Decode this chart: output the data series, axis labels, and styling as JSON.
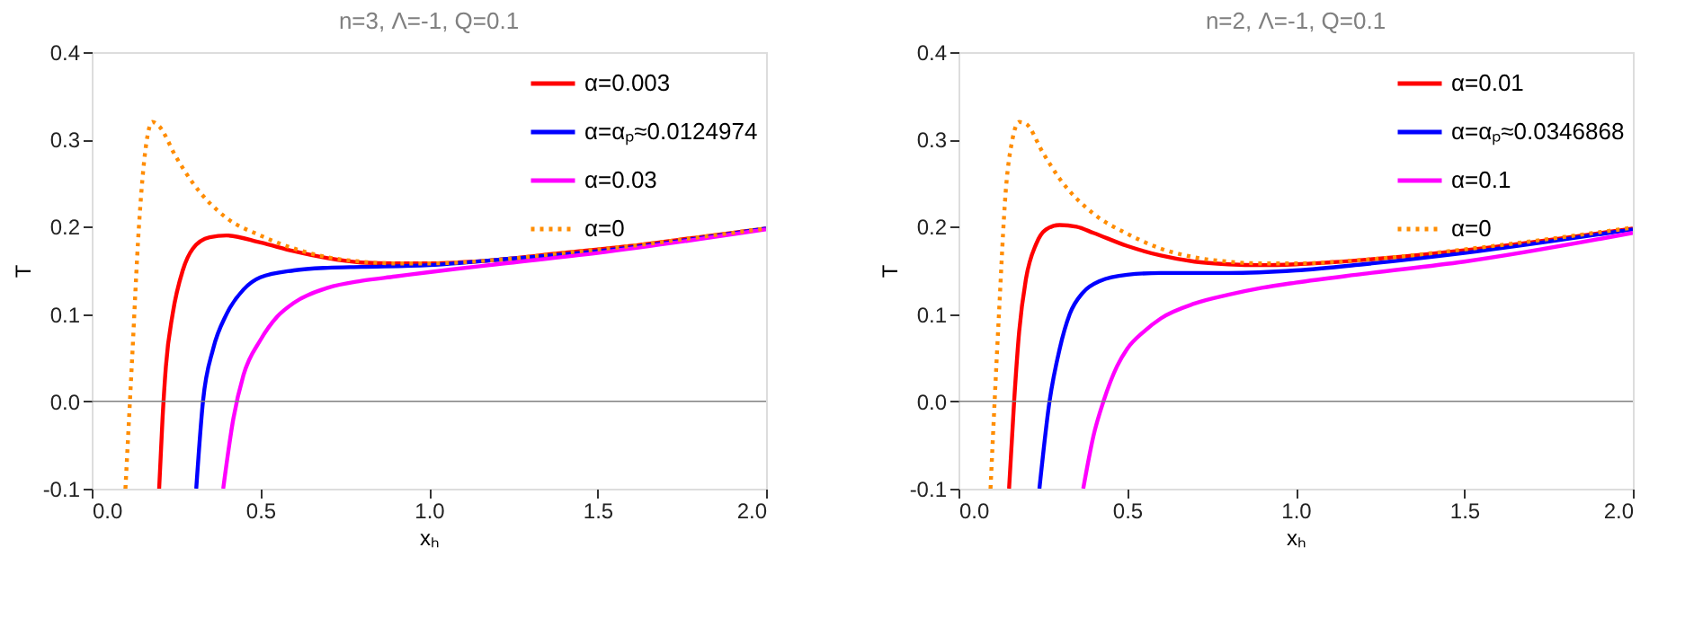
{
  "chart_data": [
    {
      "type": "line",
      "title": "n=3, Λ=-1, Q=0.1",
      "xlabel": "xₕ",
      "ylabel": "T",
      "xlim": [
        0,
        2
      ],
      "ylim": [
        -0.1,
        0.4
      ],
      "xticks": [
        {
          "value": 0,
          "label": "0.0"
        },
        {
          "value": 0.5,
          "label": "0.5"
        },
        {
          "value": 1,
          "label": "1.0"
        },
        {
          "value": 1.5,
          "label": "1.5"
        },
        {
          "value": 2,
          "label": "2.0"
        }
      ],
      "yticks": [
        {
          "value": -0.1,
          "label": "-0.1"
        },
        {
          "value": 0,
          "label": "0.0"
        },
        {
          "value": 0.1,
          "label": "0.1"
        },
        {
          "value": 0.2,
          "label": "0.2"
        },
        {
          "value": 0.3,
          "label": "0.3"
        },
        {
          "value": 0.4,
          "label": "0.4"
        }
      ],
      "grid": false,
      "legend": "top right",
      "ref_lines": [
        {
          "axis": "y",
          "value": 0,
          "color": "#808080"
        }
      ],
      "series": [
        {
          "name": "α=0.003",
          "color": "#ff0000",
          "line_style": "solid",
          "x": [
            0.2,
            0.21,
            0.22,
            0.24,
            0.27,
            0.3,
            0.35,
            0.4,
            0.5,
            0.6,
            0.7,
            0.8,
            0.9,
            1.0,
            1.2,
            1.4,
            1.6,
            1.8,
            2.0
          ],
          "values": [
            -0.1,
            -0.02,
            0.04,
            0.1,
            0.15,
            0.175,
            0.188,
            0.19,
            0.182,
            0.172,
            0.164,
            0.159,
            0.158,
            0.158,
            0.162,
            0.17,
            0.178,
            0.188,
            0.198
          ]
        },
        {
          "name": "α=αₚ≈0.0124974",
          "color": "#0000ff",
          "line_style": "solid",
          "x": [
            0.31,
            0.33,
            0.36,
            0.4,
            0.45,
            0.5,
            0.6,
            0.7,
            0.8,
            1.0,
            1.2,
            1.5,
            2.0
          ],
          "values": [
            -0.1,
            0.0,
            0.06,
            0.1,
            0.128,
            0.142,
            0.15,
            0.153,
            0.154,
            0.156,
            0.162,
            0.172,
            0.198
          ]
        },
        {
          "name": "α=0.03",
          "color": "#ff00ff",
          "line_style": "solid",
          "x": [
            0.39,
            0.42,
            0.45,
            0.5,
            0.55,
            0.6,
            0.7,
            0.8,
            0.9,
            1.0,
            1.2,
            1.5,
            2.0
          ],
          "values": [
            -0.1,
            -0.02,
            0.03,
            0.07,
            0.097,
            0.113,
            0.13,
            0.138,
            0.143,
            0.148,
            0.157,
            0.17,
            0.197
          ]
        },
        {
          "name": "α=0",
          "color": "#ff8c00",
          "line_style": "dotted",
          "x": [
            0.1,
            0.12,
            0.14,
            0.16,
            0.18,
            0.2,
            0.25,
            0.3,
            0.4,
            0.5,
            0.6,
            0.7,
            0.8,
            0.9,
            1.0,
            1.2,
            1.4,
            1.6,
            1.8,
            2.0
          ],
          "values": [
            -0.1,
            0.05,
            0.2,
            0.29,
            0.32,
            0.315,
            0.28,
            0.25,
            0.21,
            0.19,
            0.175,
            0.165,
            0.16,
            0.158,
            0.158,
            0.162,
            0.17,
            0.178,
            0.188,
            0.198
          ]
        }
      ]
    },
    {
      "type": "line",
      "title": "n=2, Λ=-1, Q=0.1",
      "xlabel": "xₕ",
      "ylabel": "T",
      "xlim": [
        0,
        2
      ],
      "ylim": [
        -0.1,
        0.4
      ],
      "xticks": [
        {
          "value": 0,
          "label": "0.0"
        },
        {
          "value": 0.5,
          "label": "0.5"
        },
        {
          "value": 1,
          "label": "1.0"
        },
        {
          "value": 1.5,
          "label": "1.5"
        },
        {
          "value": 2,
          "label": "2.0"
        }
      ],
      "yticks": [
        {
          "value": -0.1,
          "label": "-0.1"
        },
        {
          "value": 0,
          "label": "0.0"
        },
        {
          "value": 0.1,
          "label": "0.1"
        },
        {
          "value": 0.2,
          "label": "0.2"
        },
        {
          "value": 0.3,
          "label": "0.3"
        },
        {
          "value": 0.4,
          "label": "0.4"
        }
      ],
      "grid": false,
      "legend": "top right",
      "ref_lines": [
        {
          "axis": "y",
          "value": 0,
          "color": "#808080"
        }
      ],
      "series": [
        {
          "name": "α=0.01",
          "color": "#ff0000",
          "line_style": "solid",
          "x": [
            0.15,
            0.165,
            0.18,
            0.2,
            0.23,
            0.26,
            0.3,
            0.35,
            0.4,
            0.5,
            0.6,
            0.7,
            0.8,
            0.9,
            1.0,
            1.2,
            1.5,
            2.0
          ],
          "values": [
            -0.1,
            0.0,
            0.08,
            0.14,
            0.18,
            0.197,
            0.202,
            0.2,
            0.193,
            0.178,
            0.167,
            0.16,
            0.157,
            0.156,
            0.157,
            0.162,
            0.173,
            0.198
          ]
        },
        {
          "name": "α=αₚ≈0.0346868",
          "color": "#0000ff",
          "line_style": "solid",
          "x": [
            0.24,
            0.27,
            0.3,
            0.33,
            0.37,
            0.42,
            0.5,
            0.6,
            0.8,
            1.0,
            1.2,
            1.5,
            2.0
          ],
          "values": [
            -0.1,
            0.0,
            0.06,
            0.1,
            0.125,
            0.138,
            0.145,
            0.147,
            0.147,
            0.15,
            0.157,
            0.17,
            0.197
          ]
        },
        {
          "name": "α=0.1",
          "color": "#ff00ff",
          "line_style": "solid",
          "x": [
            0.37,
            0.4,
            0.43,
            0.47,
            0.5,
            0.55,
            0.6,
            0.7,
            0.8,
            0.9,
            1.0,
            1.2,
            1.5,
            2.0
          ],
          "values": [
            -0.1,
            -0.04,
            0.0,
            0.04,
            0.06,
            0.08,
            0.095,
            0.112,
            0.122,
            0.13,
            0.136,
            0.146,
            0.16,
            0.193
          ]
        },
        {
          "name": "α=0",
          "color": "#ff8c00",
          "line_style": "dotted",
          "x": [
            0.095,
            0.12,
            0.14,
            0.16,
            0.18,
            0.2,
            0.25,
            0.3,
            0.4,
            0.5,
            0.6,
            0.7,
            0.8,
            0.9,
            1.0,
            1.2,
            1.5,
            2.0
          ],
          "values": [
            -0.1,
            0.1,
            0.24,
            0.3,
            0.32,
            0.318,
            0.285,
            0.255,
            0.215,
            0.192,
            0.175,
            0.165,
            0.16,
            0.158,
            0.158,
            0.162,
            0.174,
            0.199
          ]
        }
      ]
    }
  ]
}
